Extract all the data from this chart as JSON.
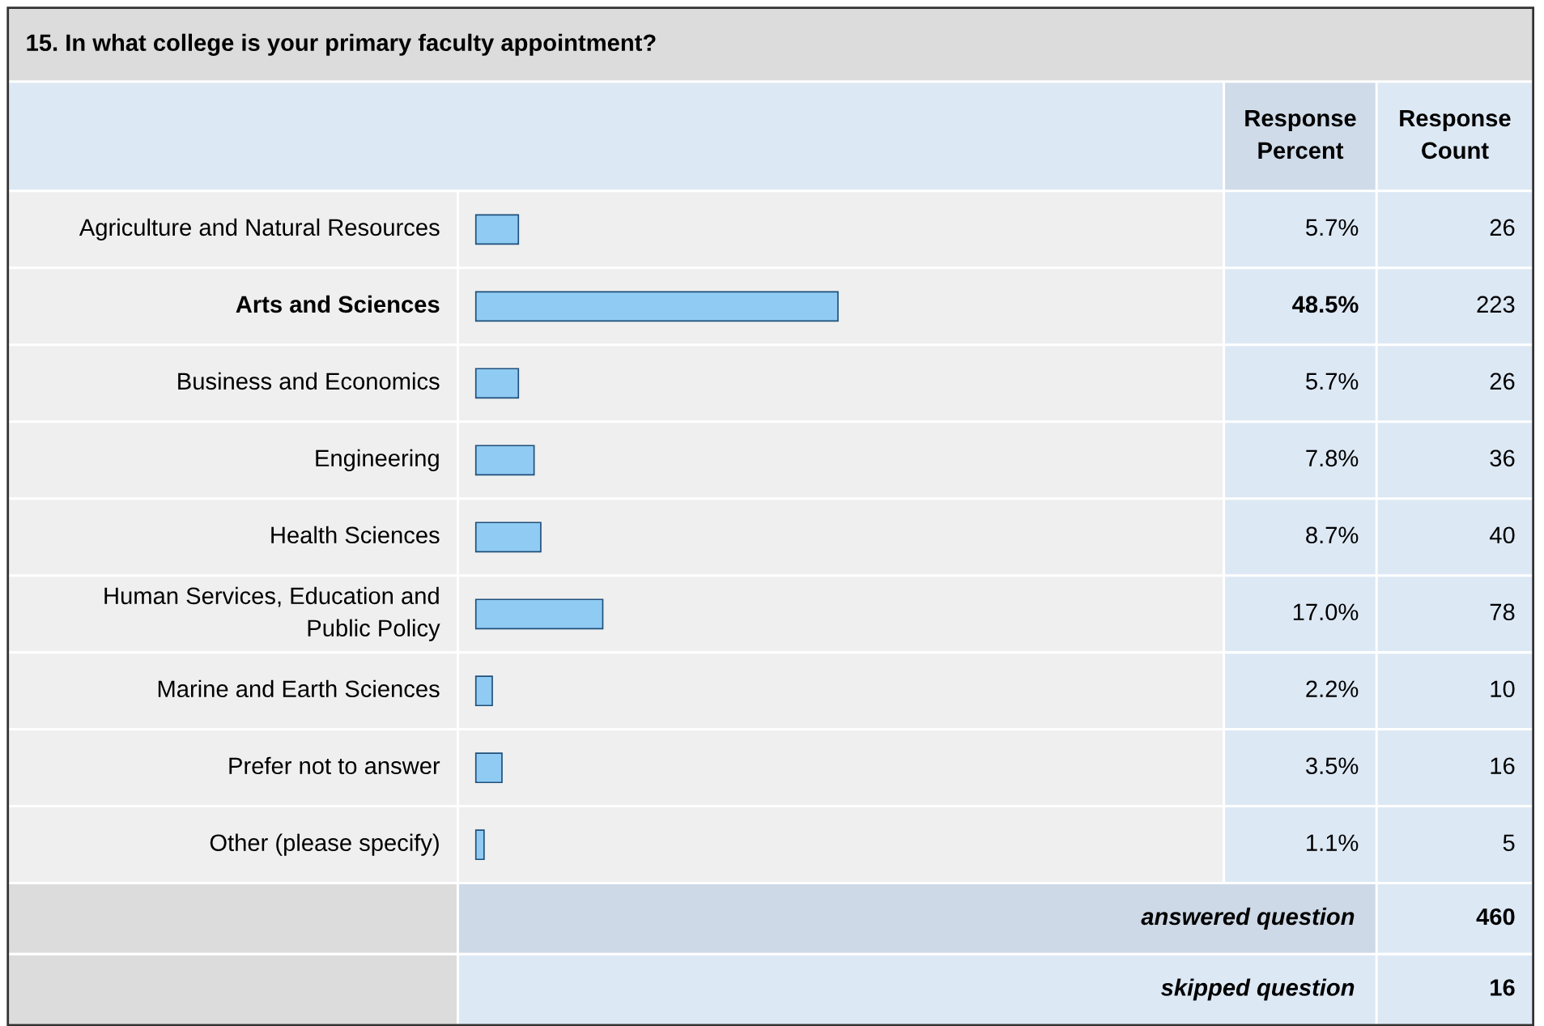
{
  "chart_data": {
    "type": "bar",
    "orientation": "horizontal",
    "title": "15. In what college is your primary faculty appointment?",
    "categories": [
      "Agriculture and Natural Resources",
      "Arts and Sciences",
      "Business and Economics",
      "Engineering",
      "Health Sciences",
      "Human Services, Education and Public Policy",
      "Marine and Earth Sciences",
      "Prefer not to answer",
      "Other (please specify)"
    ],
    "values": [
      5.7,
      48.5,
      5.7,
      7.8,
      8.7,
      17.0,
      2.2,
      3.5,
      1.1
    ],
    "value_labels": [
      "5.7%",
      "48.5%",
      "5.7%",
      "7.8%",
      "8.7%",
      "17.0%",
      "2.2%",
      "3.5%",
      "1.1%"
    ],
    "color": "#8fcbf2",
    "annotations": [
      "Response Percent",
      "Response Count",
      "26",
      "223",
      "26",
      "36",
      "40",
      "78",
      "10",
      "16",
      "5",
      "answered question",
      "460",
      "skipped question",
      "16"
    ]
  }
}
